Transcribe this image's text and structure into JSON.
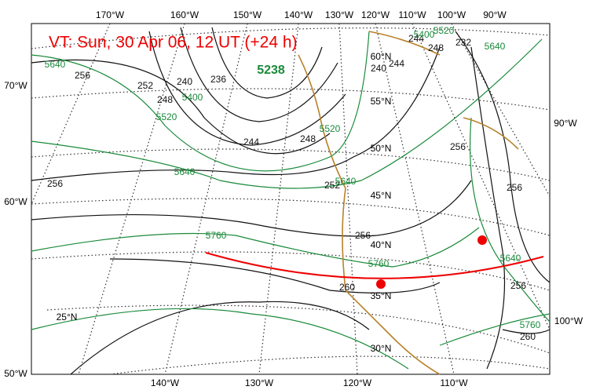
{
  "title": "VT:  Sun, 30 Apr 06, 12 UT (+24 h)",
  "top_longitude_labels": [
    "170°W",
    "160°W",
    "150°W",
    "140°W",
    "130°W",
    "120°W",
    "110°W",
    "100°W",
    "90°W"
  ],
  "bottom_longitude_labels": [
    "140°W",
    "130°W",
    "120°W",
    "110°W"
  ],
  "left_labels": [
    "70°W",
    "60°W",
    "50°W"
  ],
  "right_labels": [
    "90°W",
    "100°W"
  ],
  "latitude_labels": [
    "60°N",
    "55°N",
    "50°N",
    "45°N",
    "40°N",
    "35°N",
    "30°N",
    "25°N"
  ],
  "height_labels": [
    256,
    252,
    248,
    240,
    236,
    244,
    248,
    256,
    252,
    256,
    260,
    256,
    256,
    256,
    260,
    244,
    240,
    248,
    232,
    244
  ],
  "thickness_labels": [
    5640,
    5400,
    5520,
    5640,
    5760,
    5760,
    5640,
    5520,
    5640,
    5520,
    5400,
    5640,
    5760
  ],
  "low_center_label": 5238
}
